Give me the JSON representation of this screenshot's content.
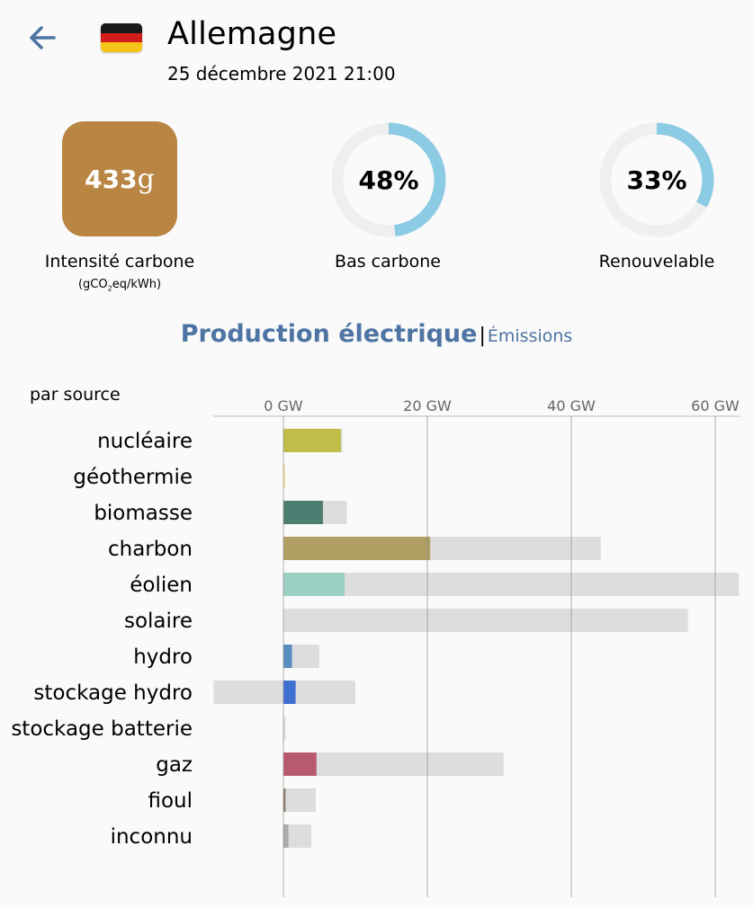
{
  "header": {
    "country": "Allemagne",
    "datetime": "25 décembre 2021 21:00",
    "flag_colors": [
      "#1a1a1a",
      "#d11c1c",
      "#f5c418"
    ]
  },
  "metrics": {
    "carbon_intensity": {
      "value": "433",
      "unit": "g",
      "label": "Intensité carbone",
      "sub_prefix": "(gCO",
      "sub_subscript": "2",
      "sub_suffix": "eq/kWh)",
      "color": "#b98543"
    },
    "low_carbon": {
      "value": "48%",
      "percent": 48,
      "label": "Bas carbone"
    },
    "renewable": {
      "value": "33%",
      "percent": 33,
      "label": "Renouvelable"
    },
    "ring_color": "#8ccbe4",
    "ring_track_color": "#efefef"
  },
  "tabs": {
    "active": "Production électrique",
    "separator": "|",
    "other": "Émissions"
  },
  "chart_data": {
    "type": "bar",
    "title": "par source",
    "xaxis_ticks": [
      "0 GW",
      "20 GW",
      "40 GW",
      "60 GW"
    ],
    "xaxis_tick_values": [
      0,
      20,
      40,
      60
    ],
    "xlim": [
      -9.7,
      63.3
    ],
    "unit": "GW",
    "capacity_color": "#dddddd",
    "rows": [
      {
        "label": "nucléaire",
        "production": 8.0,
        "capacity": 8.2,
        "color": "#c0be4b"
      },
      {
        "label": "géothermie",
        "production": 0.05,
        "capacity": 0.05,
        "color": "#f0e4a0"
      },
      {
        "label": "biomasse",
        "production": 5.5,
        "capacity": 8.8,
        "color": "#4e7e72"
      },
      {
        "label": "charbon",
        "production": 20.4,
        "capacity": 44.1,
        "color": "#b19e63"
      },
      {
        "label": "éolien",
        "production": 8.5,
        "capacity": 63.3,
        "color": "#9ad0c4"
      },
      {
        "label": "solaire",
        "production": 0.0,
        "capacity": 56.2,
        "color": "#f4d35e"
      },
      {
        "label": "hydro",
        "production": 1.2,
        "capacity": 5.0,
        "color": "#5a8ec1"
      },
      {
        "label": "stockage hydro",
        "production": 1.7,
        "capacity": 10.0,
        "negative_capacity": -9.7,
        "color": "#3e6fd1"
      },
      {
        "label": "stockage batterie",
        "production": 0.0,
        "capacity": 0.3,
        "color": "#aaaaaa"
      },
      {
        "label": "gaz",
        "production": 4.6,
        "capacity": 30.6,
        "color": "#b85a6e"
      },
      {
        "label": "fioul",
        "production": 0.3,
        "capacity": 4.5,
        "color": "#8e7d6a"
      },
      {
        "label": "inconnu",
        "production": 0.7,
        "capacity": 3.9,
        "color": "#aaaaaa"
      }
    ]
  }
}
